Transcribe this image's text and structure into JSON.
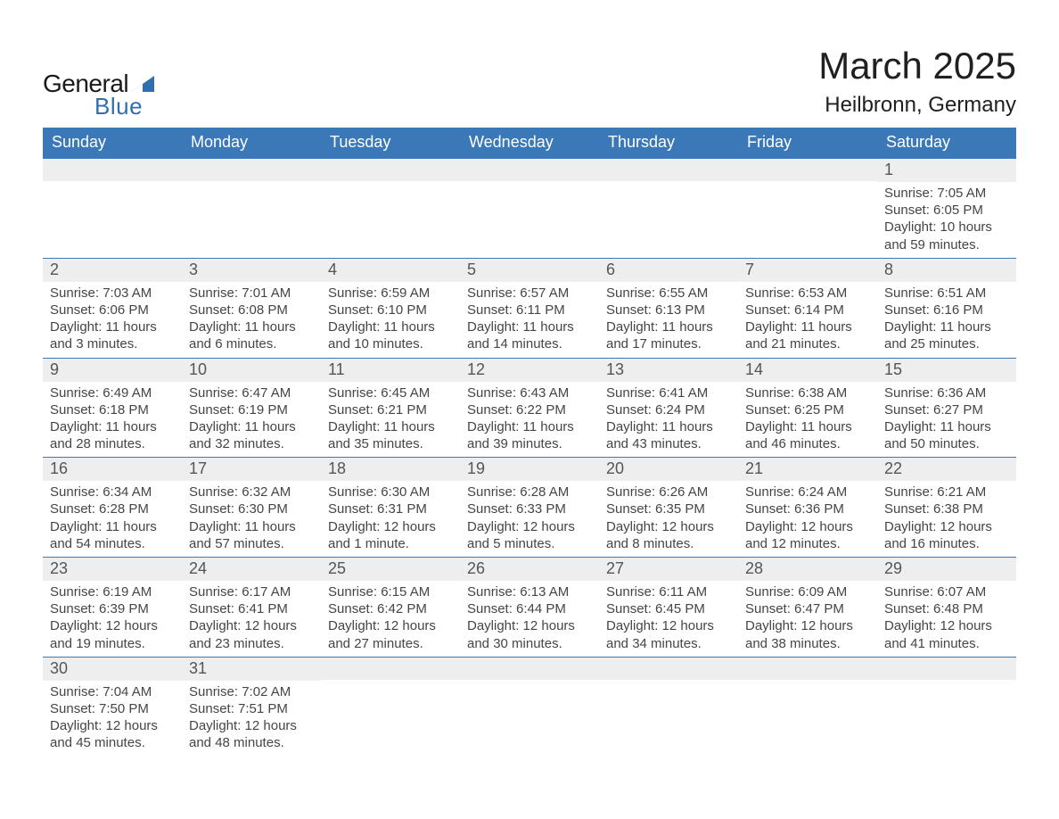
{
  "logo": {
    "text_general": "General",
    "text_blue": "Blue",
    "accent_color": "#2f6fb0"
  },
  "title": {
    "month_year": "March 2025",
    "location": "Heilbronn, Germany"
  },
  "colors": {
    "header_bg": "#3a78b8",
    "header_text": "#ffffff",
    "daynum_bg": "#eeeeee",
    "body_text": "#454545",
    "row_border": "#3a78b8",
    "page_bg": "#ffffff"
  },
  "fonts": {
    "title_size_pt": 32,
    "location_size_pt": 18,
    "dow_size_pt": 14,
    "daynum_size_pt": 14,
    "body_size_pt": 11
  },
  "day_headers": [
    "Sunday",
    "Monday",
    "Tuesday",
    "Wednesday",
    "Thursday",
    "Friday",
    "Saturday"
  ],
  "weeks": [
    [
      {
        "n": "",
        "lines": []
      },
      {
        "n": "",
        "lines": []
      },
      {
        "n": "",
        "lines": []
      },
      {
        "n": "",
        "lines": []
      },
      {
        "n": "",
        "lines": []
      },
      {
        "n": "",
        "lines": []
      },
      {
        "n": "1",
        "lines": [
          "Sunrise: 7:05 AM",
          "Sunset: 6:05 PM",
          "Daylight: 10 hours",
          "and 59 minutes."
        ]
      }
    ],
    [
      {
        "n": "2",
        "lines": [
          "Sunrise: 7:03 AM",
          "Sunset: 6:06 PM",
          "Daylight: 11 hours",
          "and 3 minutes."
        ]
      },
      {
        "n": "3",
        "lines": [
          "Sunrise: 7:01 AM",
          "Sunset: 6:08 PM",
          "Daylight: 11 hours",
          "and 6 minutes."
        ]
      },
      {
        "n": "4",
        "lines": [
          "Sunrise: 6:59 AM",
          "Sunset: 6:10 PM",
          "Daylight: 11 hours",
          "and 10 minutes."
        ]
      },
      {
        "n": "5",
        "lines": [
          "Sunrise: 6:57 AM",
          "Sunset: 6:11 PM",
          "Daylight: 11 hours",
          "and 14 minutes."
        ]
      },
      {
        "n": "6",
        "lines": [
          "Sunrise: 6:55 AM",
          "Sunset: 6:13 PM",
          "Daylight: 11 hours",
          "and 17 minutes."
        ]
      },
      {
        "n": "7",
        "lines": [
          "Sunrise: 6:53 AM",
          "Sunset: 6:14 PM",
          "Daylight: 11 hours",
          "and 21 minutes."
        ]
      },
      {
        "n": "8",
        "lines": [
          "Sunrise: 6:51 AM",
          "Sunset: 6:16 PM",
          "Daylight: 11 hours",
          "and 25 minutes."
        ]
      }
    ],
    [
      {
        "n": "9",
        "lines": [
          "Sunrise: 6:49 AM",
          "Sunset: 6:18 PM",
          "Daylight: 11 hours",
          "and 28 minutes."
        ]
      },
      {
        "n": "10",
        "lines": [
          "Sunrise: 6:47 AM",
          "Sunset: 6:19 PM",
          "Daylight: 11 hours",
          "and 32 minutes."
        ]
      },
      {
        "n": "11",
        "lines": [
          "Sunrise: 6:45 AM",
          "Sunset: 6:21 PM",
          "Daylight: 11 hours",
          "and 35 minutes."
        ]
      },
      {
        "n": "12",
        "lines": [
          "Sunrise: 6:43 AM",
          "Sunset: 6:22 PM",
          "Daylight: 11 hours",
          "and 39 minutes."
        ]
      },
      {
        "n": "13",
        "lines": [
          "Sunrise: 6:41 AM",
          "Sunset: 6:24 PM",
          "Daylight: 11 hours",
          "and 43 minutes."
        ]
      },
      {
        "n": "14",
        "lines": [
          "Sunrise: 6:38 AM",
          "Sunset: 6:25 PM",
          "Daylight: 11 hours",
          "and 46 minutes."
        ]
      },
      {
        "n": "15",
        "lines": [
          "Sunrise: 6:36 AM",
          "Sunset: 6:27 PM",
          "Daylight: 11 hours",
          "and 50 minutes."
        ]
      }
    ],
    [
      {
        "n": "16",
        "lines": [
          "Sunrise: 6:34 AM",
          "Sunset: 6:28 PM",
          "Daylight: 11 hours",
          "and 54 minutes."
        ]
      },
      {
        "n": "17",
        "lines": [
          "Sunrise: 6:32 AM",
          "Sunset: 6:30 PM",
          "Daylight: 11 hours",
          "and 57 minutes."
        ]
      },
      {
        "n": "18",
        "lines": [
          "Sunrise: 6:30 AM",
          "Sunset: 6:31 PM",
          "Daylight: 12 hours",
          "and 1 minute."
        ]
      },
      {
        "n": "19",
        "lines": [
          "Sunrise: 6:28 AM",
          "Sunset: 6:33 PM",
          "Daylight: 12 hours",
          "and 5 minutes."
        ]
      },
      {
        "n": "20",
        "lines": [
          "Sunrise: 6:26 AM",
          "Sunset: 6:35 PM",
          "Daylight: 12 hours",
          "and 8 minutes."
        ]
      },
      {
        "n": "21",
        "lines": [
          "Sunrise: 6:24 AM",
          "Sunset: 6:36 PM",
          "Daylight: 12 hours",
          "and 12 minutes."
        ]
      },
      {
        "n": "22",
        "lines": [
          "Sunrise: 6:21 AM",
          "Sunset: 6:38 PM",
          "Daylight: 12 hours",
          "and 16 minutes."
        ]
      }
    ],
    [
      {
        "n": "23",
        "lines": [
          "Sunrise: 6:19 AM",
          "Sunset: 6:39 PM",
          "Daylight: 12 hours",
          "and 19 minutes."
        ]
      },
      {
        "n": "24",
        "lines": [
          "Sunrise: 6:17 AM",
          "Sunset: 6:41 PM",
          "Daylight: 12 hours",
          "and 23 minutes."
        ]
      },
      {
        "n": "25",
        "lines": [
          "Sunrise: 6:15 AM",
          "Sunset: 6:42 PM",
          "Daylight: 12 hours",
          "and 27 minutes."
        ]
      },
      {
        "n": "26",
        "lines": [
          "Sunrise: 6:13 AM",
          "Sunset: 6:44 PM",
          "Daylight: 12 hours",
          "and 30 minutes."
        ]
      },
      {
        "n": "27",
        "lines": [
          "Sunrise: 6:11 AM",
          "Sunset: 6:45 PM",
          "Daylight: 12 hours",
          "and 34 minutes."
        ]
      },
      {
        "n": "28",
        "lines": [
          "Sunrise: 6:09 AM",
          "Sunset: 6:47 PM",
          "Daylight: 12 hours",
          "and 38 minutes."
        ]
      },
      {
        "n": "29",
        "lines": [
          "Sunrise: 6:07 AM",
          "Sunset: 6:48 PM",
          "Daylight: 12 hours",
          "and 41 minutes."
        ]
      }
    ],
    [
      {
        "n": "30",
        "lines": [
          "Sunrise: 7:04 AM",
          "Sunset: 7:50 PM",
          "Daylight: 12 hours",
          "and 45 minutes."
        ]
      },
      {
        "n": "31",
        "lines": [
          "Sunrise: 7:02 AM",
          "Sunset: 7:51 PM",
          "Daylight: 12 hours",
          "and 48 minutes."
        ]
      },
      {
        "n": "",
        "lines": []
      },
      {
        "n": "",
        "lines": []
      },
      {
        "n": "",
        "lines": []
      },
      {
        "n": "",
        "lines": []
      },
      {
        "n": "",
        "lines": []
      }
    ]
  ]
}
